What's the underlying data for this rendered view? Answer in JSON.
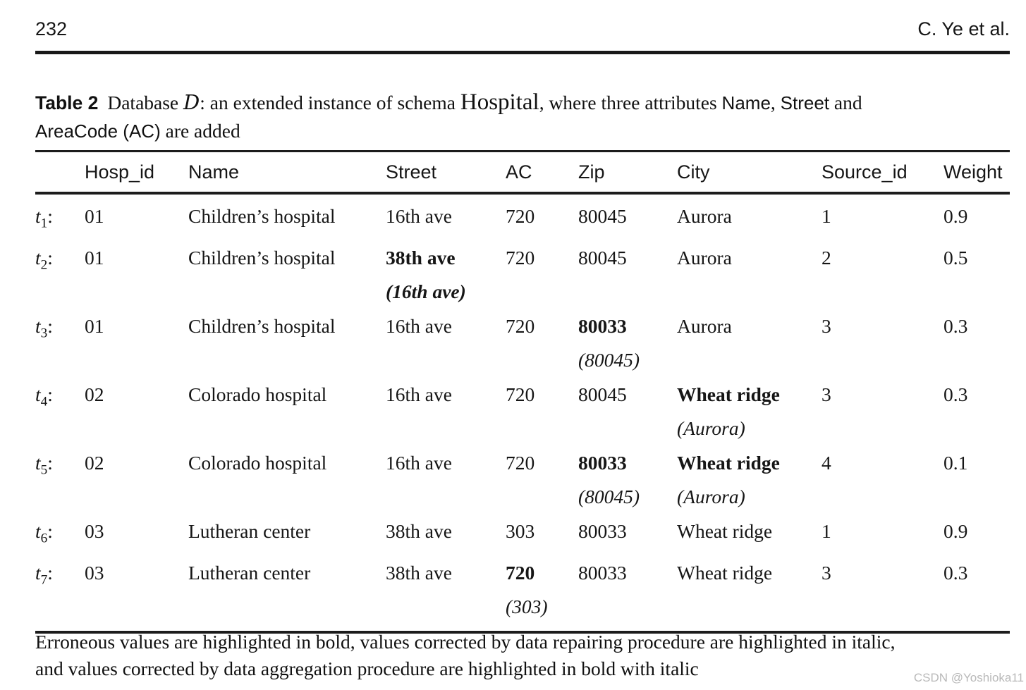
{
  "page": {
    "page_number": "232",
    "running_head": "C. Ye et al.",
    "watermark": "CSDN @Yoshioka11"
  },
  "caption": {
    "segments": [
      {
        "text": "Table 2",
        "style": "label"
      },
      {
        "text": "Database ",
        "style": "serif"
      },
      {
        "text": "D",
        "style": "script"
      },
      {
        "text": ": an extended instance of schema ",
        "style": "serif"
      },
      {
        "text": "Hospital",
        "style": "schema"
      },
      {
        "text": ", where three attributes ",
        "style": "serif"
      },
      {
        "text": "Name",
        "style": "sans"
      },
      {
        "text": ", ",
        "style": "serif"
      },
      {
        "text": "Street",
        "style": "sans"
      },
      {
        "text": " and",
        "style": "serif"
      },
      {
        "break": true
      },
      {
        "text": "AreaCode (AC)",
        "style": "sans"
      },
      {
        "text": " are added",
        "style": "serif"
      }
    ]
  },
  "table": {
    "columns": [
      "Hosp_id",
      "Name",
      "Street",
      "AC",
      "Zip",
      "City",
      "Source_id",
      "Weight"
    ],
    "rows": [
      {
        "label": "t",
        "label_sub": "1",
        "cells": [
          {
            "text": "01"
          },
          {
            "text": "Children’s hospital"
          },
          {
            "text": "16th ave"
          },
          {
            "text": "720"
          },
          {
            "text": "80045"
          },
          {
            "text": "Aurora"
          },
          {
            "text": "1"
          },
          {
            "text": "0.9"
          }
        ]
      },
      {
        "label": "t",
        "label_sub": "2",
        "cells": [
          {
            "text": "01"
          },
          {
            "text": "Children’s hospital"
          },
          {
            "text": "38th ave",
            "bold": true,
            "sub": "(16th ave)",
            "sub_style": "bold-italic"
          },
          {
            "text": "720"
          },
          {
            "text": "80045"
          },
          {
            "text": "Aurora"
          },
          {
            "text": "2"
          },
          {
            "text": "0.5"
          }
        ]
      },
      {
        "label": "t",
        "label_sub": "3",
        "cells": [
          {
            "text": "01"
          },
          {
            "text": "Children’s hospital"
          },
          {
            "text": "16th ave"
          },
          {
            "text": "720"
          },
          {
            "text": "80033",
            "bold": true,
            "sub": "(80045)",
            "sub_style": "italic"
          },
          {
            "text": "Aurora"
          },
          {
            "text": "3"
          },
          {
            "text": "0.3"
          }
        ]
      },
      {
        "label": "t",
        "label_sub": "4",
        "cells": [
          {
            "text": "02"
          },
          {
            "text": "Colorado hospital"
          },
          {
            "text": "16th ave"
          },
          {
            "text": "720"
          },
          {
            "text": "80045"
          },
          {
            "text": "Wheat ridge",
            "bold": true,
            "sub": "(Aurora)",
            "sub_style": "italic"
          },
          {
            "text": "3"
          },
          {
            "text": "0.3"
          }
        ]
      },
      {
        "label": "t",
        "label_sub": "5",
        "cells": [
          {
            "text": "02"
          },
          {
            "text": "Colorado hospital"
          },
          {
            "text": "16th ave"
          },
          {
            "text": "720"
          },
          {
            "text": "80033",
            "bold": true,
            "sub": "(80045)",
            "sub_style": "italic"
          },
          {
            "text": "Wheat ridge",
            "bold": true,
            "sub": "(Aurora)",
            "sub_style": "italic"
          },
          {
            "text": "4"
          },
          {
            "text": "0.1"
          }
        ]
      },
      {
        "label": "t",
        "label_sub": "6",
        "cells": [
          {
            "text": "03"
          },
          {
            "text": "Lutheran center"
          },
          {
            "text": "38th ave"
          },
          {
            "text": "303"
          },
          {
            "text": "80033"
          },
          {
            "text": "Wheat ridge"
          },
          {
            "text": "1"
          },
          {
            "text": "0.9"
          }
        ]
      },
      {
        "label": "t",
        "label_sub": "7",
        "cells": [
          {
            "text": "03"
          },
          {
            "text": "Lutheran center"
          },
          {
            "text": "38th ave"
          },
          {
            "text": "720",
            "bold": true,
            "sub": "(303)",
            "sub_style": "italic"
          },
          {
            "text": "80033"
          },
          {
            "text": "Wheat ridge"
          },
          {
            "text": "3"
          },
          {
            "text": "0.3"
          }
        ]
      }
    ]
  },
  "footnote": {
    "lines": [
      "Erroneous values are highlighted in bold, values corrected by data repairing procedure are highlighted in italic,",
      "and values corrected by data aggregation procedure are highlighted in bold with italic"
    ]
  }
}
